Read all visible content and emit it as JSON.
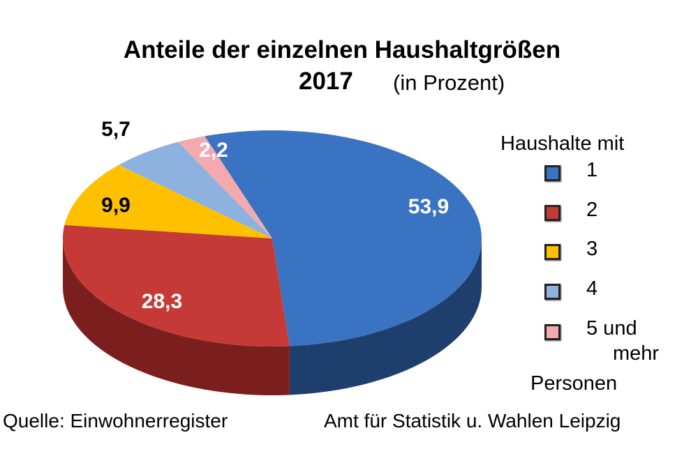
{
  "chart_data": {
    "type": "pie",
    "style": "3d",
    "title": "Anteile der einzelnen Haushaltgrößen",
    "year": "2017",
    "unit": "(in Prozent)",
    "categories": [
      "1",
      "2",
      "3",
      "4",
      "5 und mehr"
    ],
    "values": [
      53.9,
      28.3,
      9.9,
      5.7,
      2.2
    ],
    "data_labels": [
      "53,9",
      "28,3",
      "9,9",
      "5,7",
      "2,2"
    ],
    "colors": [
      "#3a73c2",
      "#c53a37",
      "#ffc000",
      "#8eb2e0",
      "#f4a9ae"
    ],
    "side_colors": [
      "#1e3f6e",
      "#7a1f1d",
      "#a07800",
      "#587aa6",
      "#b07075"
    ],
    "legend": {
      "title": "Haushalte mit",
      "items": [
        "1",
        "2",
        "3",
        "4",
        "5 und"
      ],
      "continuation": "mehr",
      "suffix": "Personen",
      "placement": "right"
    }
  },
  "footer": {
    "source": "Quelle: Einwohnerregister",
    "org": "Amt für Statistik u. Wahlen Leipzig"
  }
}
